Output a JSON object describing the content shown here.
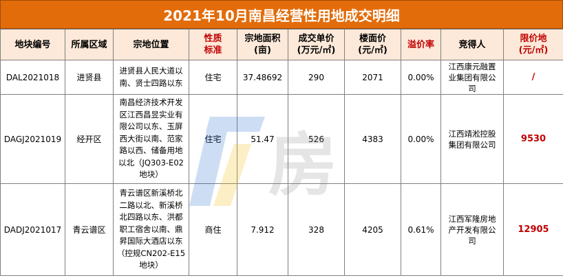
{
  "title": "2021年10月南昌经营性用地成交明细",
  "headers": {
    "plot_no": "地块编号",
    "district": "所属区域",
    "location": "宗地位置",
    "nature_l1": "性质",
    "nature_l2": "标准",
    "area_l1": "宗地面积",
    "area_l2": "(亩)",
    "unit_price_l1": "成交单价",
    "unit_price_l2": "(万元/㎡)",
    "floor_price_l1": "楼面价",
    "floor_price_l2": "(元/㎡)",
    "premium": "溢价率",
    "bidder": "竞得人",
    "limit_l1": "限价地",
    "limit_l2": "(元/㎡)"
  },
  "rows": [
    {
      "plot_no": "DAL2021018",
      "district": "进贤县",
      "location": [
        "进贤县人民大道以",
        "南、贤士四路以东"
      ],
      "nature": "住宅",
      "area": "37.48692",
      "unit_price": "290",
      "floor_price": "2071",
      "premium": "0.00%",
      "bidder": [
        "江西康元融置",
        "业集团有限公",
        "司"
      ],
      "limit": "/"
    },
    {
      "plot_no": "DAGJ2021019",
      "district": "经开区",
      "location": [
        "南昌经济技术开发",
        "区江西昌昱实业有",
        "限公司以东、玉屏",
        "西大街以南、范家",
        "路以西、储备用地",
        "以北（JQ303-E02",
        "地块）"
      ],
      "nature": "住宅",
      "area": "51.47",
      "unit_price": "526",
      "floor_price": "4383",
      "premium": "0.00%",
      "bidder": [
        "江西靖淞控股",
        "集团有限公司"
      ],
      "limit": "9530"
    },
    {
      "plot_no": "DADJ2021017",
      "district": "青云谱区",
      "location": [
        "青云谱区新溪桥北",
        "二路以北、新溪桥",
        "北四路以东、洪都",
        "职工宿舍以南、鼎",
        "昇国际大酒店以东",
        "（控规CN202-E15",
        "地块）"
      ],
      "nature": "商住",
      "area": "7.912",
      "unit_price": "328",
      "floor_price": "4205",
      "premium": "0.61%",
      "bidder": [
        "江西军隆房地",
        "产开发有限公",
        "司"
      ],
      "limit": "12905"
    }
  ],
  "watermark": "房"
}
